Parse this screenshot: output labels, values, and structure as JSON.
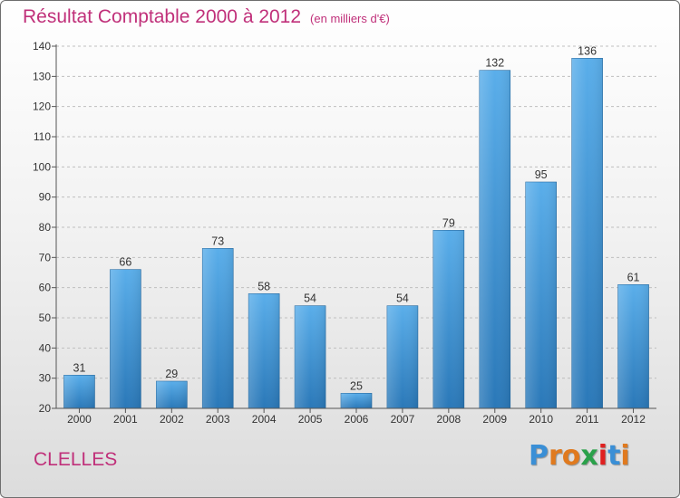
{
  "header": {
    "title": "Résultat Comptable 2000 à 2012",
    "subtitle": "(en milliers d'€)"
  },
  "footer": {
    "place": "CLELLES",
    "logo": "Proxiti",
    "logo_colors": [
      "#3a8fd6",
      "#e07a1f",
      "#e07a1f",
      "#2aa14a",
      "#e02020",
      "#3a8fd6",
      "#e07a1f"
    ]
  },
  "colors": {
    "bar_top": "#5aaeea",
    "bar_bottom": "#2a78b8",
    "axis": "#555555",
    "grid": "#bfbfbf"
  },
  "chart_data": {
    "type": "bar",
    "title": "Résultat Comptable 2000 à 2012",
    "subtitle": "(en milliers d'€)",
    "xlabel": "",
    "ylabel": "",
    "categories": [
      "2000",
      "2001",
      "2002",
      "2003",
      "2004",
      "2005",
      "2006",
      "2007",
      "2008",
      "2009",
      "2010",
      "2011",
      "2012"
    ],
    "values": [
      31,
      66,
      29,
      73,
      58,
      54,
      25,
      54,
      79,
      132,
      95,
      136,
      61
    ],
    "ylim": [
      20,
      140
    ],
    "yticks": [
      20,
      30,
      40,
      50,
      60,
      70,
      80,
      90,
      100,
      110,
      120,
      130,
      140
    ],
    "grid": "horizontal dashed",
    "legend": "none"
  }
}
